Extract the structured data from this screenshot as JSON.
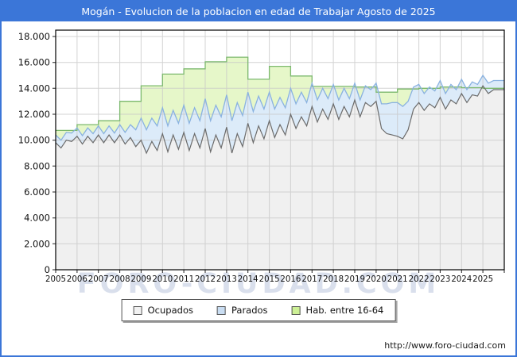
{
  "window": {
    "title": "Mogán - Evolucion de la poblacion en edad de Trabajar Agosto de 2025",
    "frame_color": "#3b76d8"
  },
  "watermark": "FORO-CIUDAD.COM",
  "footer": {
    "url": "http://www.foro-ciudad.com"
  },
  "chart_data": {
    "type": "area",
    "title": "Mogán - Evolucion de la poblacion en edad de Trabajar Agosto de 2025",
    "xlabel": "",
    "ylabel": "",
    "ylim": [
      0,
      18000
    ],
    "yticks": [
      0,
      2000,
      4000,
      6000,
      8000,
      10000,
      12000,
      14000,
      16000,
      18000
    ],
    "ytick_labels": [
      "0",
      "2.000",
      "4.000",
      "6.000",
      "8.000",
      "10.000",
      "12.000",
      "14.000",
      "16.000",
      "18.000"
    ],
    "years": [
      "2005",
      "2006",
      "2007",
      "2008",
      "2009",
      "2010",
      "2011",
      "2012",
      "2013",
      "2014",
      "2015",
      "2016",
      "2017",
      "2018",
      "2019",
      "2020",
      "2021",
      "2022",
      "2023",
      "2024",
      "2025"
    ],
    "grid": true,
    "legend_position": "bottom",
    "x_domain": {
      "start": 2005.0,
      "end": 2026.0,
      "data_end": "Agosto 2025"
    },
    "series": [
      {
        "name": "Ocupados",
        "render": "area",
        "cadence": "quarterly",
        "start": "2005-Q1",
        "end": "2025-Q3",
        "fill": "#f0f0f0",
        "line": "#6b6b6b",
        "values": [
          9800,
          9400,
          10000,
          9900,
          10300,
          9700,
          10300,
          9800,
          10400,
          9800,
          10400,
          9800,
          10400,
          9700,
          10200,
          9500,
          10000,
          9000,
          9900,
          9200,
          10500,
          9100,
          10400,
          9300,
          10600,
          9200,
          10500,
          9400,
          10900,
          9100,
          10400,
          9400,
          11000,
          9000,
          10500,
          9500,
          11300,
          9800,
          11100,
          10100,
          11500,
          10200,
          11200,
          10400,
          12000,
          10900,
          11800,
          11100,
          12600,
          11400,
          12400,
          11600,
          12800,
          11600,
          12600,
          11800,
          13100,
          11800,
          12900,
          12600,
          13000,
          10900,
          10500,
          10400,
          10300,
          10100,
          10800,
          12400,
          12900,
          12300,
          12800,
          12500,
          13300,
          12400,
          13100,
          12800,
          13600,
          12900,
          13500,
          13400,
          14200,
          13600,
          13900
        ]
      },
      {
        "name": "Parados",
        "render": "area-stacked-on-Ocupados",
        "cadence": "quarterly",
        "start": "2005-Q1",
        "end": "2025-Q3",
        "fill": "#dcebf9",
        "line": "#8ab2e0",
        "values": [
          600,
          600,
          600,
          650,
          650,
          650,
          650,
          700,
          700,
          700,
          700,
          750,
          800,
          900,
          1000,
          1300,
          1700,
          1800,
          1800,
          1900,
          2000,
          2000,
          1900,
          2000,
          2100,
          2100,
          2000,
          2100,
          2300,
          2400,
          2300,
          2400,
          2500,
          2500,
          2400,
          2400,
          2400,
          2400,
          2300,
          2300,
          2200,
          2200,
          2100,
          2100,
          2000,
          1900,
          1900,
          1800,
          1800,
          1700,
          1600,
          1600,
          1500,
          1500,
          1400,
          1400,
          1300,
          1300,
          1300,
          1300,
          1400,
          1900,
          2300,
          2500,
          2600,
          2500,
          2200,
          1700,
          1400,
          1300,
          1300,
          1300,
          1300,
          1200,
          1200,
          1100,
          1100,
          1000,
          1000,
          900,
          800,
          800,
          700
        ]
      },
      {
        "name": "Hab. entre 16-64",
        "render": "area-steps",
        "cadence": "yearly",
        "start": "2005",
        "end": "2025",
        "fill": "#e6f7c9",
        "line": "#7cb96e",
        "values": [
          10750,
          11200,
          11500,
          13000,
          14200,
          15100,
          15500,
          16050,
          16400,
          14700,
          15700,
          14950,
          14150,
          14150,
          14100,
          13700,
          13950,
          14000,
          14100,
          14050,
          14000
        ]
      }
    ]
  }
}
